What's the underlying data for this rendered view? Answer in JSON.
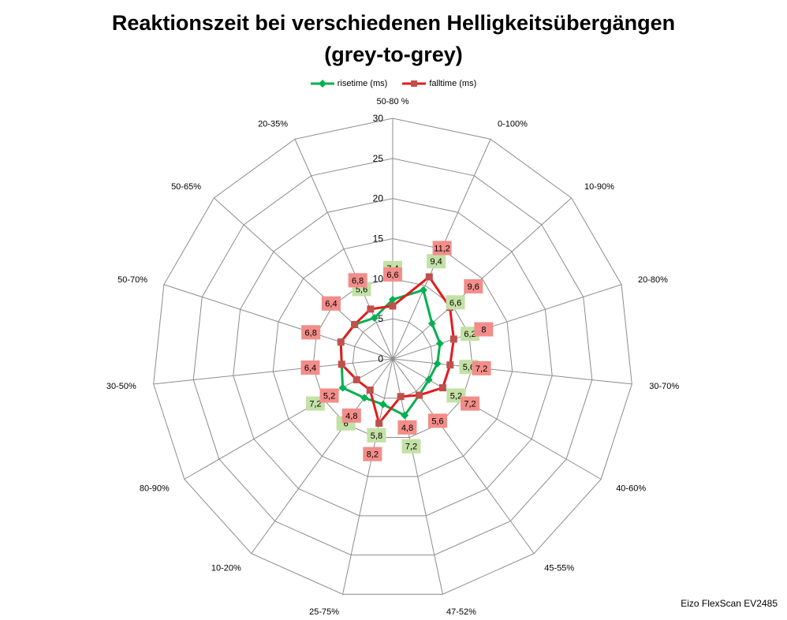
{
  "chart_data": {
    "type": "radar",
    "title": "Reaktionszeit bei verschiedenen Helligkeitsübergängen",
    "subtitle": "(grey-to-grey)",
    "categories": [
      "50-80 %",
      "0-100%",
      "10-90%",
      "20-80%",
      "30-70%",
      "40-60%",
      "45-55%",
      "47-52%",
      "25-75%",
      "10-20%",
      "80-90%",
      "30-50%",
      "50-70%",
      "50-65%",
      "20-35%"
    ],
    "radial_ticks": [
      "0",
      "5",
      "10",
      "15",
      "20",
      "25",
      "30"
    ],
    "rmax": 30,
    "grid": true,
    "legend_position": "top",
    "series": [
      {
        "name": "risetime (ms)",
        "color": "#00b050",
        "label_bg": "#c3e1a6",
        "values": [
          7.4,
          9.4,
          6.6,
          6.2,
          5.6,
          5.2,
          5.6,
          7.2,
          5.8,
          6,
          7.2,
          6.4,
          6.8,
          6.4,
          5.6
        ],
        "labels": [
          "7,4",
          "9,4",
          "6,6",
          "6,2",
          "5,6",
          "5,2",
          "5,6",
          "7,2",
          "5,8",
          "6",
          "7,2",
          "6,4",
          "6,8",
          "6,4",
          "5,6"
        ]
      },
      {
        "name": "falltime (ms)",
        "color": "#e31b1b",
        "label_bg": "#f28d8a",
        "values": [
          6.6,
          11.2,
          9.6,
          8,
          7.2,
          7.2,
          5.6,
          4.8,
          8.2,
          4.8,
          5.2,
          6.4,
          6.8,
          6.4,
          6.8
        ],
        "labels": [
          "6,6",
          "11,2",
          "9,6",
          "8",
          "7,2",
          "7,2",
          "5,6",
          "4,8",
          "8,2",
          "4,8",
          "5,2",
          "6,4",
          "6,8",
          "6,4",
          "6,8"
        ]
      }
    ]
  },
  "footer": "Eizo FlexScan EV2485"
}
